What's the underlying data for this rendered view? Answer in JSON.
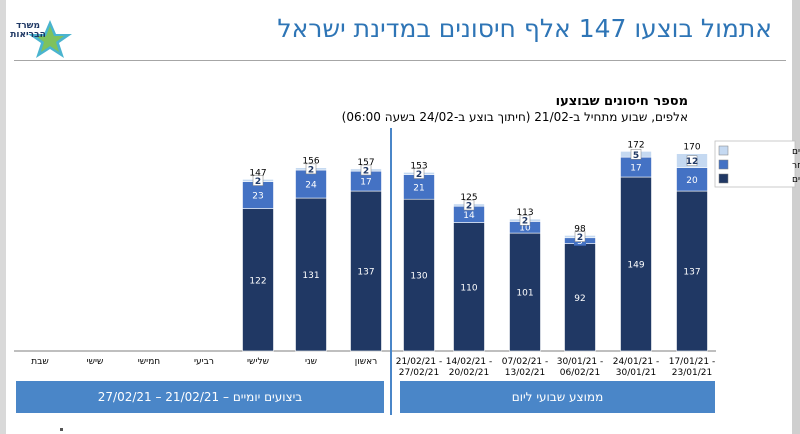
{
  "logo": {
    "text": "משרד הבריאות"
  },
  "title": "אתמול בוצעו 147 אלף חיסונים במדינת ישראל",
  "chart_data": {
    "type": "bar",
    "stacked": true,
    "title": "מספר חיסונים שבוצעו",
    "subtitle": "אלפים, שבוע מתחיל ב-21/02 (חיתוך בוצע ב-24/02 בשעה 06:00)",
    "categories": [
      "17/01/21 - 23/01/21",
      "24/01/21- 30/01/21",
      "30/01/21- 06/02/21",
      "07/02/21 - 13/02/21",
      "14/02/21 - 20/02/21",
      "21/02/21 - 27/02/21",
      "ראשון",
      "שני",
      "שלישי",
      "רביעי",
      "חמישי",
      "שישי",
      "שבת"
    ],
    "series": [
      {
        "name": "קופות החולים",
        "color": "#203864",
        "values": [
          137,
          149,
          92,
          101,
          110,
          130,
          137,
          131,
          122,
          null,
          null,
          null,
          null
        ]
      },
      {
        "name": "אחר",
        "color": "#4472c4",
        "values": [
          20,
          17,
          5,
          10,
          14,
          21,
          17,
          24,
          23,
          null,
          null,
          null,
          null
        ]
      },
      {
        "name": "בתי החולים",
        "color": "#c5d9f1",
        "values": [
          12,
          5,
          2,
          2,
          2,
          2,
          2,
          2,
          2,
          null,
          null,
          null,
          null
        ]
      }
    ],
    "totals": [
      170,
      172,
      98,
      113,
      125,
      153,
      157,
      156,
      147,
      null,
      null,
      null,
      null
    ],
    "ylim": [
      0,
      185
    ],
    "grid": false,
    "legend": "top-right"
  },
  "groups": {
    "weekly_label": "ממוצע שבועי ליום",
    "daily_label": "ביצועים יומיים – 21/02/21 – 27/02/21"
  }
}
